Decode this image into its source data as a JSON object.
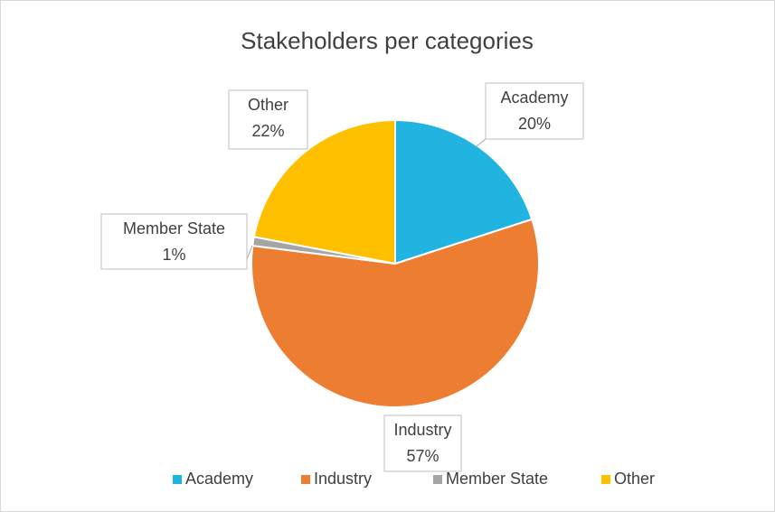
{
  "chart_data": {
    "type": "pie",
    "title": "Stakeholders per categories",
    "categories": [
      "Academy",
      "Industry",
      "Member State",
      "Other"
    ],
    "values": [
      20,
      57,
      1,
      22
    ],
    "value_labels": [
      "20%",
      "57%",
      "1%",
      "22%"
    ],
    "colors": [
      "#22b4e0",
      "#ed7d31",
      "#a5a5a5",
      "#ffc000"
    ],
    "legend": "bottom"
  }
}
